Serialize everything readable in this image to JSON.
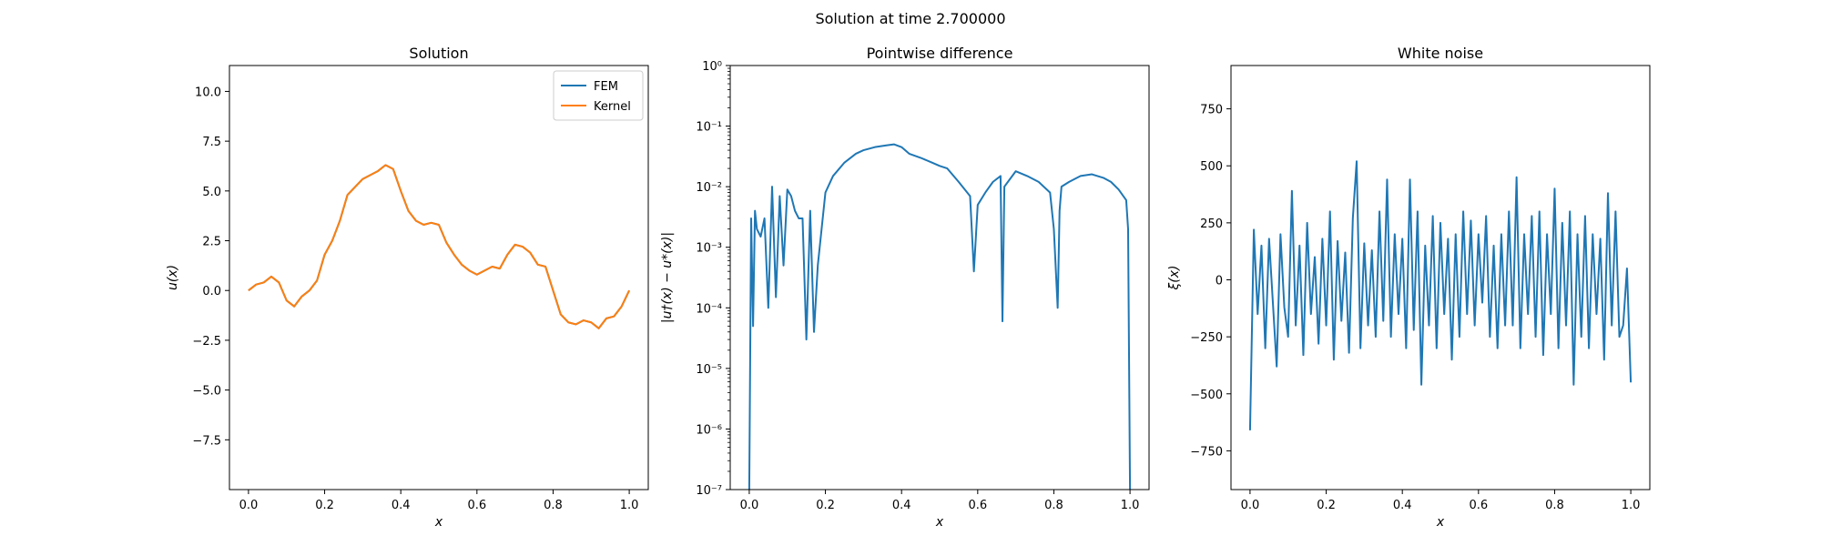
{
  "figure": {
    "suptitle": "Solution at time 2.700000"
  },
  "colors": {
    "fem": "#1f77b4",
    "kernel": "#ff7f0e",
    "noise": "#1f77b4",
    "diff": "#1f77b4"
  },
  "chart_data": [
    {
      "type": "line",
      "title": "Solution",
      "xlabel": "x",
      "ylabel": "u(x)",
      "xlim": [
        -0.05,
        1.05
      ],
      "ylim": [
        -10,
        11.3
      ],
      "xticks": [
        0.0,
        0.2,
        0.4,
        0.6,
        0.8,
        1.0
      ],
      "xtick_labels": [
        "0.0",
        "0.2",
        "0.4",
        "0.6",
        "0.8",
        "1.0"
      ],
      "yticks": [
        -7.5,
        -5.0,
        -2.5,
        0.0,
        2.5,
        5.0,
        7.5,
        10.0
      ],
      "ytick_labels": [
        "−7.5",
        "−5.0",
        "−2.5",
        "0.0",
        "2.5",
        "5.0",
        "7.5",
        "10.0"
      ],
      "legend": {
        "position": "upper right",
        "entries": [
          "FEM",
          "Kernel"
        ]
      },
      "series": [
        {
          "name": "FEM",
          "color": "#1f77b4",
          "x": [
            0.0,
            0.02,
            0.04,
            0.06,
            0.08,
            0.1,
            0.12,
            0.14,
            0.16,
            0.18,
            0.2,
            0.22,
            0.24,
            0.26,
            0.28,
            0.3,
            0.32,
            0.34,
            0.36,
            0.38,
            0.4,
            0.42,
            0.44,
            0.46,
            0.48,
            0.5,
            0.52,
            0.54,
            0.56,
            0.58,
            0.6,
            0.62,
            0.64,
            0.66,
            0.68,
            0.7,
            0.72,
            0.74,
            0.76,
            0.78,
            0.8,
            0.82,
            0.84,
            0.86,
            0.88,
            0.9,
            0.92,
            0.94,
            0.96,
            0.98,
            1.0
          ],
          "y": [
            0.0,
            0.3,
            0.4,
            0.7,
            0.4,
            -0.5,
            -0.8,
            -0.3,
            0.0,
            0.5,
            1.8,
            2.5,
            3.5,
            4.8,
            5.2,
            5.6,
            5.8,
            6.0,
            6.3,
            6.1,
            5.0,
            4.0,
            3.5,
            3.3,
            3.4,
            3.3,
            2.4,
            1.8,
            1.3,
            1.0,
            0.8,
            1.0,
            1.2,
            1.1,
            1.8,
            2.3,
            2.2,
            1.9,
            1.3,
            1.2,
            0.0,
            -1.2,
            -1.6,
            -1.7,
            -1.5,
            -1.6,
            -1.9,
            -1.4,
            -1.3,
            -0.8,
            0.0
          ]
        },
        {
          "name": "Kernel",
          "color": "#ff7f0e",
          "x": [
            0.0,
            0.02,
            0.04,
            0.06,
            0.08,
            0.1,
            0.12,
            0.14,
            0.16,
            0.18,
            0.2,
            0.22,
            0.24,
            0.26,
            0.28,
            0.3,
            0.32,
            0.34,
            0.36,
            0.38,
            0.4,
            0.42,
            0.44,
            0.46,
            0.48,
            0.5,
            0.52,
            0.54,
            0.56,
            0.58,
            0.6,
            0.62,
            0.64,
            0.66,
            0.68,
            0.7,
            0.72,
            0.74,
            0.76,
            0.78,
            0.8,
            0.82,
            0.84,
            0.86,
            0.88,
            0.9,
            0.92,
            0.94,
            0.96,
            0.98,
            1.0
          ],
          "y": [
            0.0,
            0.3,
            0.4,
            0.7,
            0.4,
            -0.5,
            -0.8,
            -0.3,
            0.0,
            0.5,
            1.8,
            2.5,
            3.5,
            4.8,
            5.2,
            5.6,
            5.8,
            6.0,
            6.3,
            6.1,
            5.0,
            4.0,
            3.5,
            3.3,
            3.4,
            3.3,
            2.4,
            1.8,
            1.3,
            1.0,
            0.8,
            1.0,
            1.2,
            1.1,
            1.8,
            2.3,
            2.2,
            1.9,
            1.3,
            1.2,
            0.0,
            -1.2,
            -1.6,
            -1.7,
            -1.5,
            -1.6,
            -1.9,
            -1.4,
            -1.3,
            -0.8,
            0.0
          ]
        }
      ]
    },
    {
      "type": "line",
      "title": "Pointwise difference",
      "xlabel": "x",
      "ylabel": "|u†(x) − u*(x)|",
      "yscale": "log",
      "xlim": [
        -0.05,
        1.05
      ],
      "ylim": [
        1e-07,
        1
      ],
      "xticks": [
        0.0,
        0.2,
        0.4,
        0.6,
        0.8,
        1.0
      ],
      "xtick_labels": [
        "0.0",
        "0.2",
        "0.4",
        "0.6",
        "0.8",
        "1.0"
      ],
      "yticks": [
        1e-07,
        1e-06,
        1e-05,
        0.0001,
        0.001,
        0.01,
        0.1,
        1
      ],
      "ytick_labels": [
        "10⁻⁷",
        "10⁻⁶",
        "10⁻⁵",
        "10⁻⁴",
        "10⁻³",
        "10⁻²",
        "10⁻¹",
        "10⁰"
      ],
      "series": [
        {
          "color": "#1f77b4",
          "x": [
            0.0,
            0.005,
            0.01,
            0.015,
            0.02,
            0.03,
            0.04,
            0.05,
            0.06,
            0.07,
            0.08,
            0.09,
            0.1,
            0.11,
            0.12,
            0.13,
            0.14,
            0.15,
            0.16,
            0.17,
            0.18,
            0.2,
            0.22,
            0.25,
            0.28,
            0.3,
            0.33,
            0.36,
            0.38,
            0.4,
            0.42,
            0.45,
            0.48,
            0.5,
            0.52,
            0.55,
            0.58,
            0.59,
            0.6,
            0.62,
            0.64,
            0.66,
            0.665,
            0.67,
            0.7,
            0.73,
            0.76,
            0.79,
            0.8,
            0.81,
            0.815,
            0.82,
            0.84,
            0.87,
            0.9,
            0.93,
            0.95,
            0.97,
            0.99,
            0.995,
            1.0
          ],
          "y": [
            1e-07,
            0.003,
            5e-05,
            0.004,
            0.002,
            0.0015,
            0.003,
            0.0001,
            0.01,
            0.00015,
            0.007,
            0.0005,
            0.009,
            0.007,
            0.004,
            0.003,
            0.003,
            3e-05,
            0.004,
            4e-05,
            0.0005,
            0.008,
            0.015,
            0.025,
            0.035,
            0.04,
            0.045,
            0.048,
            0.05,
            0.045,
            0.035,
            0.03,
            0.025,
            0.022,
            0.02,
            0.012,
            0.007,
            0.0004,
            0.005,
            0.008,
            0.012,
            0.015,
            6e-05,
            0.01,
            0.018,
            0.015,
            0.012,
            0.008,
            0.002,
            0.0001,
            0.004,
            0.01,
            0.012,
            0.015,
            0.016,
            0.014,
            0.012,
            0.009,
            0.006,
            0.002,
            1e-07
          ]
        }
      ]
    },
    {
      "type": "line",
      "title": "White noise",
      "xlabel": "x",
      "ylabel": "ξ(x)",
      "xlim": [
        -0.05,
        1.05
      ],
      "ylim": [
        -920,
        940
      ],
      "xticks": [
        0.0,
        0.2,
        0.4,
        0.6,
        0.8,
        1.0
      ],
      "xtick_labels": [
        "0.0",
        "0.2",
        "0.4",
        "0.6",
        "0.8",
        "1.0"
      ],
      "yticks": [
        -750,
        -500,
        -250,
        0,
        250,
        500,
        750
      ],
      "ytick_labels": [
        "−750",
        "−500",
        "−250",
        "0",
        "250",
        "500",
        "750"
      ],
      "series": [
        {
          "color": "#1f77b4",
          "x": [
            0.0,
            0.01,
            0.02,
            0.03,
            0.04,
            0.05,
            0.06,
            0.07,
            0.08,
            0.09,
            0.1,
            0.11,
            0.12,
            0.13,
            0.14,
            0.15,
            0.16,
            0.17,
            0.18,
            0.19,
            0.2,
            0.21,
            0.22,
            0.23,
            0.24,
            0.25,
            0.26,
            0.27,
            0.28,
            0.29,
            0.3,
            0.31,
            0.32,
            0.33,
            0.34,
            0.35,
            0.36,
            0.37,
            0.38,
            0.39,
            0.4,
            0.41,
            0.42,
            0.43,
            0.44,
            0.45,
            0.46,
            0.47,
            0.48,
            0.49,
            0.5,
            0.51,
            0.52,
            0.53,
            0.54,
            0.55,
            0.56,
            0.57,
            0.58,
            0.59,
            0.6,
            0.61,
            0.62,
            0.63,
            0.64,
            0.65,
            0.66,
            0.67,
            0.68,
            0.69,
            0.7,
            0.71,
            0.72,
            0.73,
            0.74,
            0.75,
            0.76,
            0.77,
            0.78,
            0.79,
            0.8,
            0.81,
            0.82,
            0.83,
            0.84,
            0.85,
            0.86,
            0.87,
            0.88,
            0.89,
            0.9,
            0.91,
            0.92,
            0.93,
            0.94,
            0.95,
            0.96,
            0.97,
            0.98,
            0.99,
            1.0
          ],
          "y": [
            -660,
            220,
            -150,
            150,
            -300,
            180,
            -100,
            -380,
            200,
            -120,
            -250,
            390,
            -200,
            150,
            -330,
            250,
            -150,
            100,
            -280,
            180,
            -200,
            300,
            -350,
            170,
            -180,
            120,
            -320,
            270,
            520,
            -300,
            160,
            -200,
            130,
            -250,
            300,
            -180,
            440,
            -250,
            200,
            -150,
            180,
            -300,
            440,
            -220,
            300,
            -460,
            150,
            -200,
            280,
            -300,
            250,
            -150,
            180,
            -350,
            200,
            -250,
            300,
            -150,
            260,
            -200,
            200,
            -100,
            280,
            -250,
            150,
            -300,
            200,
            -200,
            300,
            -200,
            450,
            -300,
            200,
            -150,
            280,
            -250,
            300,
            -330,
            200,
            -150,
            400,
            -300,
            250,
            -200,
            300,
            -460,
            200,
            -250,
            280,
            -300,
            200,
            -150,
            180,
            -350,
            380,
            -200,
            300,
            -250,
            -200,
            50,
            -450
          ]
        }
      ]
    }
  ]
}
